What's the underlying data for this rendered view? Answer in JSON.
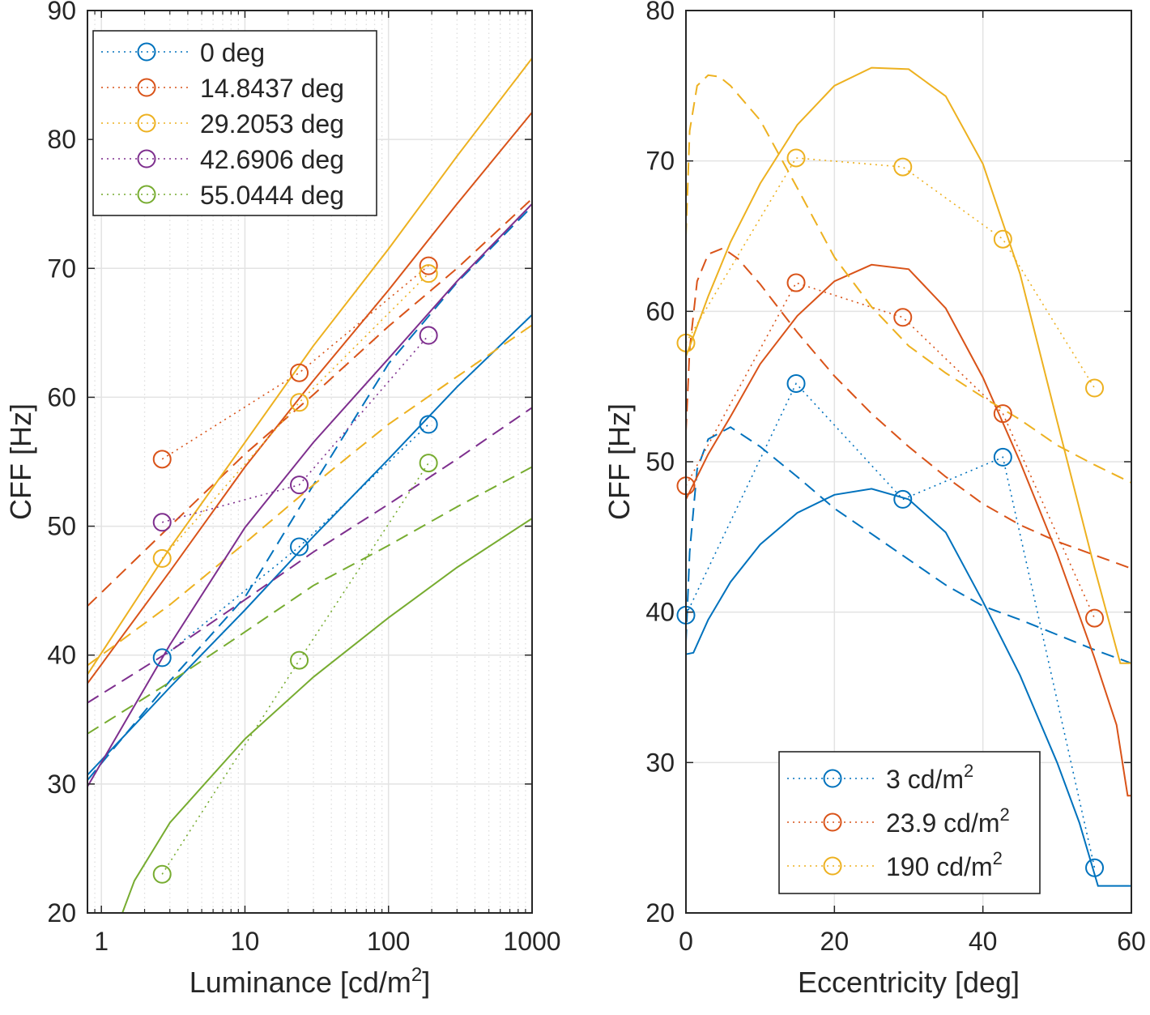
{
  "chart_data": [
    {
      "type": "line",
      "xscale": "log",
      "xlabel": "Luminance [cd/m",
      "xlabel_sup": "2",
      "xlabel_suffix": "]",
      "ylabel": "CFF [Hz]",
      "xlim": [
        0.8,
        1000
      ],
      "ylim": [
        20,
        90
      ],
      "xticks": [
        1,
        10,
        100,
        1000
      ],
      "xtick_labels": [
        "1",
        "10",
        "100",
        "1000"
      ],
      "yticks": [
        20,
        30,
        40,
        50,
        60,
        70,
        80,
        90
      ],
      "ytick_labels": [
        "20",
        "30",
        "40",
        "50",
        "60",
        "70",
        "80",
        "90"
      ],
      "grid": true,
      "legend_position": "top-left",
      "series": [
        {
          "name": "0 deg",
          "color": "#0072BD",
          "measured": {
            "x": [
              2.65,
              23.9,
              190
            ],
            "y": [
              39.8,
              48.4,
              57.9
            ]
          },
          "model_solid": {
            "x": [
              0.8,
              3,
              10,
              30,
              100,
              300,
              1000
            ],
            "y": [
              30.7,
              37.5,
              43.5,
              49.2,
              55.2,
              60.8,
              66.4
            ]
          },
          "model_dashed": {
            "x": [
              0.8,
              3,
              10,
              30,
              100,
              300,
              1000
            ],
            "y": [
              30.3,
              38.0,
              44.5,
              53.2,
              62.6,
              68.9,
              74.8
            ]
          }
        },
        {
          "name": "14.8437 deg",
          "color": "#D95319",
          "measured": {
            "x": [
              2.65,
              23.9,
              190
            ],
            "y": [
              55.2,
              61.9,
              70.2
            ]
          },
          "model_solid": {
            "x": [
              0.8,
              3,
              10,
              30,
              100,
              300,
              1000
            ],
            "y": [
              37.8,
              46.5,
              54.6,
              61.3,
              68.3,
              75.0,
              82.1
            ]
          },
          "model_dashed": {
            "x": [
              0.8,
              3,
              10,
              30,
              100,
              300,
              1000
            ],
            "y": [
              43.8,
              50.0,
              55.6,
              60.2,
              65.5,
              70.0,
              75.4
            ]
          }
        },
        {
          "name": "29.2053 deg",
          "color": "#EDB120",
          "measured": {
            "x": [
              2.65,
              23.9,
              190
            ],
            "y": [
              47.5,
              59.6,
              69.6
            ]
          },
          "model_solid": {
            "x": [
              0.8,
              3,
              10,
              30,
              100,
              300,
              1000
            ],
            "y": [
              38.5,
              48.3,
              56.5,
              64.0,
              71.5,
              78.7,
              86.3
            ]
          },
          "model_dashed": {
            "x": [
              0.8,
              3,
              10,
              30,
              100,
              300,
              1000
            ],
            "y": [
              39.2,
              43.9,
              48.7,
              53.2,
              57.9,
              61.6,
              65.6
            ]
          }
        },
        {
          "name": "42.6906 deg",
          "color": "#7E2F8E",
          "measured": {
            "x": [
              2.65,
              23.9,
              190
            ],
            "y": [
              50.3,
              53.2,
              64.8
            ]
          },
          "model_solid": {
            "x": [
              0.8,
              3,
              10,
              30,
              100,
              300,
              1000
            ],
            "y": [
              29.8,
              40.8,
              49.9,
              56.5,
              63.0,
              69.0,
              75.0
            ]
          },
          "model_dashed": {
            "x": [
              0.8,
              3,
              10,
              30,
              100,
              300,
              1000
            ],
            "y": [
              36.3,
              40.3,
              44.3,
              48.0,
              51.7,
              55.2,
              59.2
            ]
          }
        },
        {
          "name": "55.0444 deg",
          "color": "#77AC30",
          "measured": {
            "x": [
              2.65,
              23.9,
              190
            ],
            "y": [
              23.0,
              39.6,
              54.9
            ]
          },
          "model_solid": {
            "x": [
              0.8,
              1.4,
              1.7,
              3,
              10,
              30,
              100,
              300,
              1000
            ],
            "y": [
              20.0,
              20.0,
              22.5,
              27.0,
              33.5,
              38.3,
              42.9,
              46.8,
              50.6
            ]
          },
          "model_dashed": {
            "x": [
              0.8,
              3,
              10,
              30,
              100,
              300,
              1000
            ],
            "y": [
              33.9,
              37.9,
              41.8,
              45.4,
              48.5,
              51.5,
              54.6
            ]
          }
        }
      ]
    },
    {
      "type": "line",
      "xscale": "linear",
      "xlabel": "Eccentricity [deg]",
      "ylabel": "CFF [Hz]",
      "xlim": [
        0,
        60
      ],
      "ylim": [
        20,
        80
      ],
      "xticks": [
        0,
        20,
        40,
        60
      ],
      "xtick_labels": [
        "0",
        "20",
        "40",
        "60"
      ],
      "yticks": [
        20,
        30,
        40,
        50,
        60,
        70,
        80
      ],
      "ytick_labels": [
        "20",
        "30",
        "40",
        "50",
        "60",
        "70",
        "80"
      ],
      "grid": true,
      "legend_position": "bottom-center",
      "series": [
        {
          "name": "3 cd/m",
          "name_sup": "2",
          "color": "#0072BD",
          "measured": {
            "x": [
              0,
              14.84,
              29.21,
              42.69,
              55.04
            ],
            "y": [
              39.8,
              55.2,
              47.5,
              50.3,
              23.0
            ]
          },
          "model_solid": {
            "x": [
              0,
              1,
              3,
              6,
              10,
              15,
              20,
              25,
              30,
              35,
              40,
              45,
              50,
              53,
              55.5,
              56.5,
              60
            ],
            "y": [
              37.2,
              37.3,
              39.5,
              42.0,
              44.5,
              46.6,
              47.8,
              48.2,
              47.5,
              45.3,
              40.7,
              35.8,
              30.0,
              26.0,
              21.8,
              21.8,
              21.8
            ]
          },
          "model_dashed": {
            "x": [
              0,
              0.5,
              1.5,
              3,
              6,
              10,
              15,
              20,
              25,
              30,
              35,
              40,
              45,
              50,
              55,
              60
            ],
            "y": [
              38.0,
              44.0,
              49.5,
              51.5,
              52.3,
              51.0,
              49.0,
              46.9,
              45.2,
              43.5,
              41.8,
              40.4,
              39.5,
              38.5,
              37.5,
              36.6
            ]
          }
        },
        {
          "name": "23.9 cd/m",
          "name_sup": "2",
          "color": "#D95319",
          "measured": {
            "x": [
              0,
              14.84,
              29.21,
              42.69,
              55.04
            ],
            "y": [
              48.4,
              61.9,
              59.6,
              53.2,
              39.6
            ]
          },
          "model_solid": {
            "x": [
              0,
              3,
              6,
              10,
              15,
              20,
              25,
              30,
              35,
              40,
              45,
              50,
              55,
              58,
              59.5,
              60
            ],
            "y": [
              47.5,
              50.5,
              53.0,
              56.5,
              59.7,
              62.0,
              63.1,
              62.8,
              60.2,
              55.6,
              50.0,
              43.9,
              37.0,
              32.5,
              27.8,
              27.8
            ]
          },
          "model_dashed": {
            "x": [
              0,
              0.5,
              1.5,
              3,
              5,
              7,
              10,
              15,
              20,
              25,
              30,
              35,
              40,
              45,
              50,
              55,
              60
            ],
            "y": [
              52.0,
              57.5,
              62.0,
              63.8,
              64.2,
              63.5,
              61.8,
              58.6,
              55.7,
              53.2,
              51.0,
              49.0,
              47.2,
              45.8,
              44.7,
              43.8,
              42.9
            ]
          }
        },
        {
          "name": "190 cd/m",
          "name_sup": "2",
          "color": "#EDB120",
          "measured": {
            "x": [
              0,
              14.84,
              29.21,
              42.69,
              55.04
            ],
            "y": [
              57.9,
              70.2,
              69.6,
              64.8,
              54.9
            ]
          },
          "model_solid": {
            "x": [
              0,
              3,
              6,
              10,
              15,
              20,
              25,
              30,
              35,
              40,
              45,
              50,
              55,
              58.5,
              60
            ],
            "y": [
              57.0,
              61.0,
              64.6,
              68.5,
              72.4,
              75.0,
              76.2,
              76.1,
              74.3,
              69.8,
              62.5,
              52.7,
              43.0,
              36.6,
              36.6
            ]
          },
          "model_dashed": {
            "x": [
              0,
              0.5,
              1.5,
              3,
              4.5,
              6,
              10,
              15,
              20,
              25,
              30,
              35,
              40,
              45,
              50,
              55,
              60
            ],
            "y": [
              65.0,
              72.0,
              75.0,
              75.7,
              75.6,
              75.0,
              72.7,
              68.2,
              63.6,
              60.3,
              57.7,
              55.9,
              54.3,
              52.8,
              51.1,
              49.8,
              48.6
            ]
          }
        }
      ]
    }
  ]
}
